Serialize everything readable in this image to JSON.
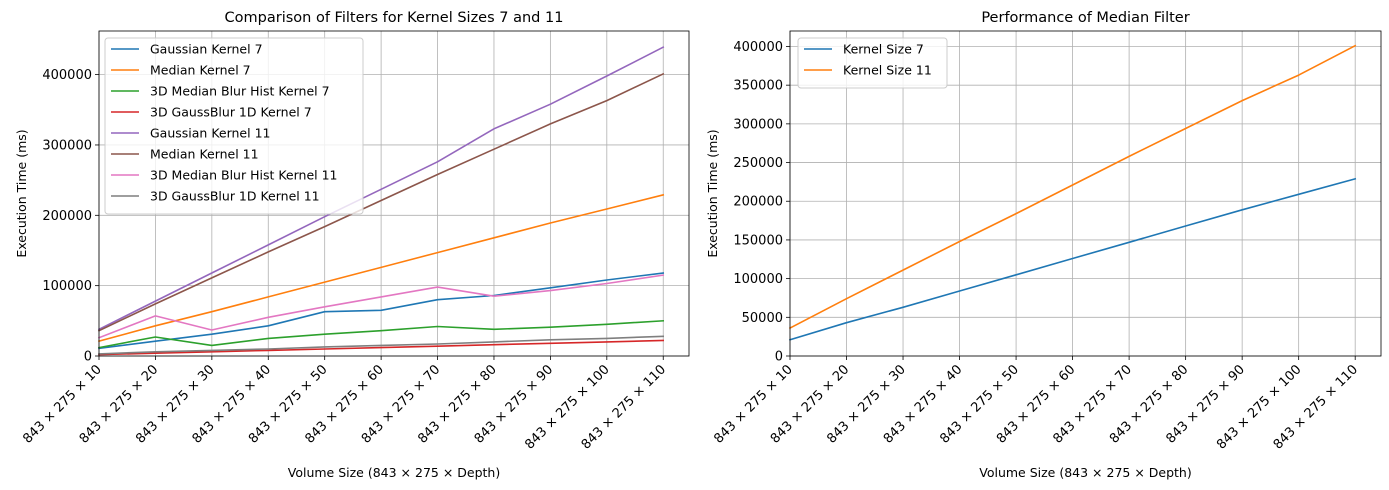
{
  "chart_data": [
    {
      "type": "line",
      "title": "Comparison of Filters for Kernel Sizes 7 and 11",
      "xlabel": "Volume Size (843 × 275 × Depth)",
      "ylabel": "Execution Time (ms)",
      "categories": [
        "843 × 275 × 10",
        "843 × 275 × 20",
        "843 × 275 × 30",
        "843 × 275 × 40",
        "843 × 275 × 50",
        "843 × 275 × 60",
        "843 × 275 × 70",
        "843 × 275 × 80",
        "843 × 275 × 90",
        "843 × 275 × 100",
        "843 × 275 × 110"
      ],
      "ylim": [
        0,
        462000
      ],
      "yticks": [
        0,
        100000,
        200000,
        300000,
        400000
      ],
      "grid": true,
      "legend_position": "upper-left",
      "series": [
        {
          "name": "Gaussian Kernel 7",
          "color": "#1f77b4",
          "values": [
            11000,
            21000,
            31000,
            43000,
            63000,
            65000,
            80000,
            86000,
            97000,
            108000,
            118000
          ]
        },
        {
          "name": "Median Kernel 7",
          "color": "#ff7f0e",
          "values": [
            21000,
            43000,
            63000,
            84000,
            105000,
            126000,
            147000,
            168000,
            189000,
            209000,
            229000
          ]
        },
        {
          "name": "3D Median Blur Hist Kernel 7",
          "color": "#2ca02c",
          "values": [
            12000,
            27000,
            15000,
            25000,
            31000,
            36000,
            42000,
            38000,
            41000,
            45000,
            50000
          ]
        },
        {
          "name": "3D GaussBlur 1D Kernel 7",
          "color": "#d62728",
          "values": [
            2000,
            4000,
            6000,
            8000,
            10000,
            12000,
            14000,
            16000,
            18000,
            20000,
            22000
          ]
        },
        {
          "name": "Gaussian Kernel 11",
          "color": "#9467bd",
          "values": [
            38000,
            78000,
            118000,
            158000,
            198000,
            237000,
            276000,
            323000,
            358000,
            398000,
            439000
          ]
        },
        {
          "name": "Median Kernel 11",
          "color": "#8c564b",
          "values": [
            36000,
            74000,
            111000,
            148000,
            184000,
            221000,
            258000,
            294000,
            330000,
            363000,
            401000
          ]
        },
        {
          "name": "3D Median Blur Hist Kernel 11",
          "color": "#e377c2",
          "values": [
            26000,
            57000,
            37000,
            55000,
            70000,
            84000,
            98000,
            85000,
            93000,
            103000,
            115000
          ]
        },
        {
          "name": "3D GaussBlur 1D Kernel 11",
          "color": "#7f7f7f",
          "values": [
            3000,
            6000,
            8000,
            10000,
            13000,
            15000,
            17000,
            20000,
            23000,
            25000,
            28000
          ]
        }
      ]
    },
    {
      "type": "line",
      "title": "Performance of Median Filter",
      "xlabel": "Volume Size (843 × 275 × Depth)",
      "ylabel": "Execution Time (ms)",
      "categories": [
        "843 × 275 × 10",
        "843 × 275 × 20",
        "843 × 275 × 30",
        "843 × 275 × 40",
        "843 × 275 × 50",
        "843 × 275 × 60",
        "843 × 275 × 70",
        "843 × 275 × 80",
        "843 × 275 × 90",
        "843 × 275 × 100",
        "843 × 275 × 110"
      ],
      "ylim": [
        0,
        420000
      ],
      "yticks": [
        0,
        50000,
        100000,
        150000,
        200000,
        250000,
        300000,
        350000,
        400000
      ],
      "grid": true,
      "legend_position": "upper-left",
      "series": [
        {
          "name": "Kernel Size 7",
          "color": "#1f77b4",
          "values": [
            21000,
            43000,
            63000,
            84000,
            105000,
            126000,
            147000,
            168000,
            189000,
            209000,
            229000
          ]
        },
        {
          "name": "Kernel Size 11",
          "color": "#ff7f0e",
          "values": [
            36000,
            74000,
            111000,
            148000,
            184000,
            221000,
            258000,
            294000,
            330000,
            363000,
            401000
          ]
        }
      ]
    }
  ]
}
